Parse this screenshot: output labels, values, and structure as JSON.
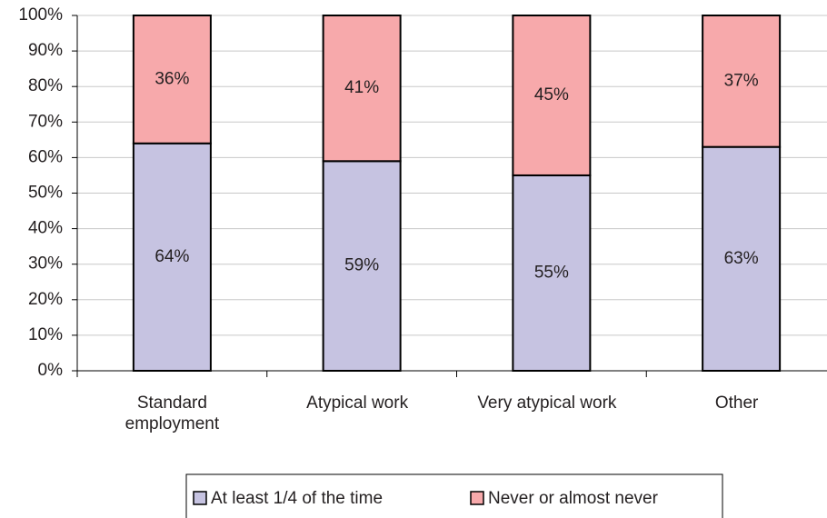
{
  "chart_data": {
    "type": "stacked_bar",
    "categories": [
      "Standard employment",
      "Atypical work",
      "Very atypical work",
      "Other"
    ],
    "series": [
      {
        "name": "At least 1/4 of the time",
        "color": "#c6c3e1",
        "values": [
          64,
          59,
          55,
          63
        ],
        "value_labels": [
          "64%",
          "59%",
          "55%",
          "63%"
        ]
      },
      {
        "name": "Never or almost never",
        "color": "#f7a9ab",
        "values": [
          36,
          41,
          45,
          37
        ],
        "value_labels": [
          "36%",
          "41%",
          "45%",
          "37%"
        ]
      }
    ],
    "ylim": [
      0,
      100
    ],
    "yticks": [
      {
        "value": 0,
        "label": "0%"
      },
      {
        "value": 10,
        "label": "10%"
      },
      {
        "value": 20,
        "label": "20%"
      },
      {
        "value": 30,
        "label": "30%"
      },
      {
        "value": 40,
        "label": "40%"
      },
      {
        "value": 50,
        "label": "50%"
      },
      {
        "value": 60,
        "label": "60%"
      },
      {
        "value": 70,
        "label": "70%"
      },
      {
        "value": 80,
        "label": "80%"
      },
      {
        "value": 90,
        "label": "90%"
      },
      {
        "value": 100,
        "label": "100%"
      }
    ],
    "grid": true,
    "legend": "bottom"
  }
}
